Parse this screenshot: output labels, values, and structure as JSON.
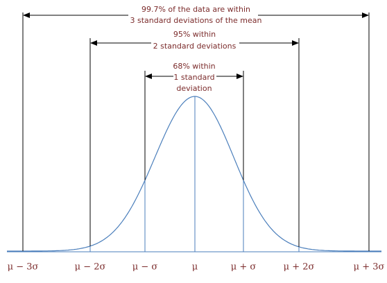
{
  "annotations": [
    {
      "lines": [
        "99.7% of the data are within",
        "3 standard deviations of the mean"
      ]
    },
    {
      "lines": [
        "95% within",
        "2 standard deviations"
      ]
    },
    {
      "lines": [
        "68% within",
        "1 standard",
        "deviation"
      ]
    }
  ],
  "axis_labels": [
    "μ − 3σ",
    "μ − 2σ",
    "μ − σ",
    "μ",
    "μ + σ",
    "μ + 2σ",
    "μ + 3σ"
  ]
}
